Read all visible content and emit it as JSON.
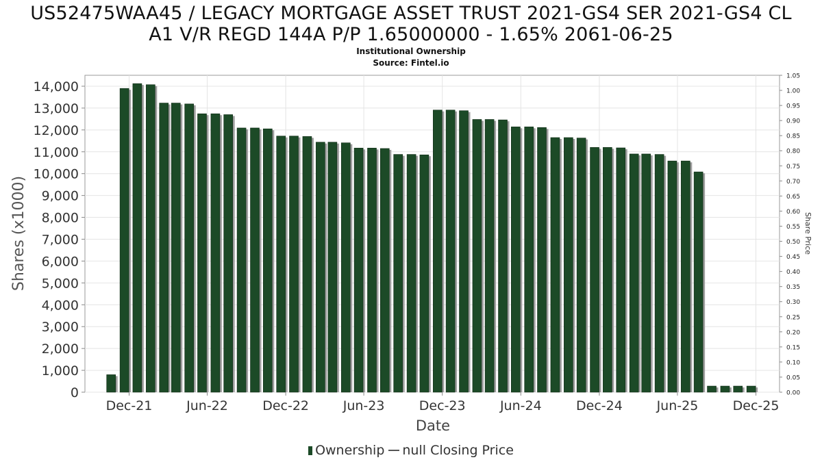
{
  "chart_data": {
    "type": "bar",
    "title_line1": "US52475WAA45 / LEGACY MORTGAGE ASSET TRUST 2021-GS4 SER 2021-GS4 CL",
    "title_line2": "A1 V/R REGD 144A P/P 1.65000000 - 1.65% 2061-06-25",
    "subtitle1": "Institutional Ownership",
    "subtitle2": "Source: Fintel.io",
    "xlabel": "Date",
    "ylabel": "Shares (x1000)",
    "y2label": "Share Price",
    "xlim": [
      "2021-08-20",
      "2026-01-25"
    ],
    "ylim": [
      0,
      14500
    ],
    "y2lim": [
      0,
      1.05
    ],
    "yticks": [
      0,
      1000,
      2000,
      3000,
      4000,
      5000,
      6000,
      7000,
      8000,
      9000,
      10000,
      11000,
      12000,
      13000,
      14000
    ],
    "y2ticks": [
      "0.00",
      "0.05",
      "0.10",
      "0.15",
      "0.20",
      "0.25",
      "0.30",
      "0.35",
      "0.40",
      "0.45",
      "0.50",
      "0.55",
      "0.60",
      "0.65",
      "0.70",
      "0.75",
      "0.80",
      "0.85",
      "0.90",
      "0.95",
      "1.00",
      "1.05"
    ],
    "xticks": [
      {
        "label": "Dec-21",
        "date": "2021-12-01"
      },
      {
        "label": "Jun-22",
        "date": "2022-06-01"
      },
      {
        "label": "Dec-22",
        "date": "2022-12-01"
      },
      {
        "label": "Jun-23",
        "date": "2023-06-01"
      },
      {
        "label": "Dec-23",
        "date": "2023-12-01"
      },
      {
        "label": "Jun-24",
        "date": "2024-06-01"
      },
      {
        "label": "Dec-24",
        "date": "2024-12-01"
      },
      {
        "label": "Jun-25",
        "date": "2025-06-01"
      },
      {
        "label": "Dec-25",
        "date": "2025-12-01"
      }
    ],
    "grid": true,
    "legend_position": "bottom-center",
    "series": [
      {
        "name": "Ownership",
        "color": "#1c4a27",
        "points": [
          {
            "x": "2021-10-20",
            "y": 800
          },
          {
            "x": "2021-11-20",
            "y": 13900
          },
          {
            "x": "2021-12-20",
            "y": 14120
          },
          {
            "x": "2022-01-20",
            "y": 14070
          },
          {
            "x": "2022-02-20",
            "y": 13230
          },
          {
            "x": "2022-03-20",
            "y": 13230
          },
          {
            "x": "2022-04-20",
            "y": 13190
          },
          {
            "x": "2022-05-20",
            "y": 12740
          },
          {
            "x": "2022-06-20",
            "y": 12740
          },
          {
            "x": "2022-07-20",
            "y": 12700
          },
          {
            "x": "2022-08-20",
            "y": 12090
          },
          {
            "x": "2022-09-20",
            "y": 12090
          },
          {
            "x": "2022-10-20",
            "y": 12050
          },
          {
            "x": "2022-11-20",
            "y": 11720
          },
          {
            "x": "2022-12-20",
            "y": 11720
          },
          {
            "x": "2023-01-20",
            "y": 11700
          },
          {
            "x": "2023-02-20",
            "y": 11440
          },
          {
            "x": "2023-03-20",
            "y": 11440
          },
          {
            "x": "2023-04-20",
            "y": 11410
          },
          {
            "x": "2023-05-20",
            "y": 11170
          },
          {
            "x": "2023-06-20",
            "y": 11170
          },
          {
            "x": "2023-07-20",
            "y": 11150
          },
          {
            "x": "2023-08-20",
            "y": 10880
          },
          {
            "x": "2023-09-20",
            "y": 10880
          },
          {
            "x": "2023-10-20",
            "y": 10860
          },
          {
            "x": "2023-11-20",
            "y": 12910
          },
          {
            "x": "2023-12-20",
            "y": 12910
          },
          {
            "x": "2024-01-20",
            "y": 12880
          },
          {
            "x": "2024-02-20",
            "y": 12480
          },
          {
            "x": "2024-03-20",
            "y": 12480
          },
          {
            "x": "2024-04-20",
            "y": 12460
          },
          {
            "x": "2024-05-20",
            "y": 12140
          },
          {
            "x": "2024-06-20",
            "y": 12140
          },
          {
            "x": "2024-07-20",
            "y": 12110
          },
          {
            "x": "2024-08-20",
            "y": 11650
          },
          {
            "x": "2024-09-20",
            "y": 11650
          },
          {
            "x": "2024-10-20",
            "y": 11630
          },
          {
            "x": "2024-11-20",
            "y": 11200
          },
          {
            "x": "2024-12-20",
            "y": 11200
          },
          {
            "x": "2025-01-20",
            "y": 11180
          },
          {
            "x": "2025-02-20",
            "y": 10900
          },
          {
            "x": "2025-03-20",
            "y": 10900
          },
          {
            "x": "2025-04-20",
            "y": 10880
          },
          {
            "x": "2025-05-20",
            "y": 10580
          },
          {
            "x": "2025-06-20",
            "y": 10580
          },
          {
            "x": "2025-07-20",
            "y": 10080
          },
          {
            "x": "2025-08-20",
            "y": 280
          },
          {
            "x": "2025-09-20",
            "y": 280
          },
          {
            "x": "2025-10-20",
            "y": 280
          },
          {
            "x": "2025-11-20",
            "y": 280
          }
        ]
      },
      {
        "name": "null Closing Price",
        "color": "#555555",
        "points": []
      }
    ]
  }
}
